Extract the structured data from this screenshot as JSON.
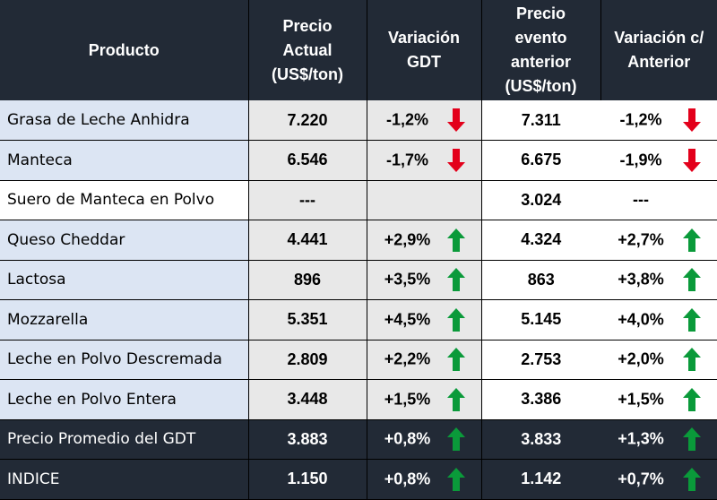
{
  "headers": {
    "producto": "Producto",
    "precio_actual": [
      "Precio",
      "Actual",
      "(US$/ton)"
    ],
    "variacion_gdt": [
      "Variación",
      "GDT"
    ],
    "precio_anterior": [
      "Precio",
      "evento",
      "anterior",
      "(US$/ton)"
    ],
    "variacion_anterior": [
      "Variación c/",
      "Anterior"
    ]
  },
  "colors": {
    "up": "#0a9a3a",
    "down": "#e3001b",
    "header_bg": "#222a36",
    "row_blue": "#dce5f3",
    "col_gray": "#e8e8e8"
  },
  "rows": [
    {
      "producto": "Grasa de Leche Anhidra",
      "precio": "7.220",
      "var": "-1,2%",
      "var_dir": "down",
      "prev": "7.311",
      "pvar": "-1,2%",
      "pvar_dir": "down"
    },
    {
      "producto": "Manteca",
      "precio": "6.546",
      "var": "-1,7%",
      "var_dir": "down",
      "prev": "6.675",
      "pvar": "-1,9%",
      "pvar_dir": "down"
    },
    {
      "producto": "Suero de Manteca en Polvo",
      "precio": "---",
      "var": "",
      "var_dir": "",
      "prev": "3.024",
      "pvar": "---",
      "pvar_dir": ""
    },
    {
      "producto": "Queso Cheddar",
      "precio": "4.441",
      "var": "+2,9%",
      "var_dir": "up",
      "prev": "4.324",
      "pvar": "+2,7%",
      "pvar_dir": "up"
    },
    {
      "producto": "Lactosa",
      "precio": "896",
      "var": "+3,5%",
      "var_dir": "up",
      "prev": "863",
      "pvar": "+3,8%",
      "pvar_dir": "up"
    },
    {
      "producto": "Mozzarella",
      "precio": "5.351",
      "var": "+4,5%",
      "var_dir": "up",
      "prev": "5.145",
      "pvar": "+4,0%",
      "pvar_dir": "up"
    },
    {
      "producto": "Leche en Polvo Descremada",
      "precio": "2.809",
      "var": "+2,2%",
      "var_dir": "up",
      "prev": "2.753",
      "pvar": "+2,0%",
      "pvar_dir": "up"
    },
    {
      "producto": "Leche en Polvo Entera",
      "precio": "3.448",
      "var": "+1,5%",
      "var_dir": "up",
      "prev": "3.386",
      "pvar": "+1,5%",
      "pvar_dir": "up"
    }
  ],
  "summary": [
    {
      "producto": "Precio Promedio del GDT",
      "precio": "3.883",
      "var": "+0,8%",
      "var_dir": "up",
      "prev": "3.833",
      "pvar": "+1,3%",
      "pvar_dir": "up"
    },
    {
      "producto": "INDICE",
      "precio": "1.150",
      "var": "+0,8%",
      "var_dir": "up",
      "prev": "1.142",
      "pvar": "+0,7%",
      "pvar_dir": "up"
    }
  ]
}
